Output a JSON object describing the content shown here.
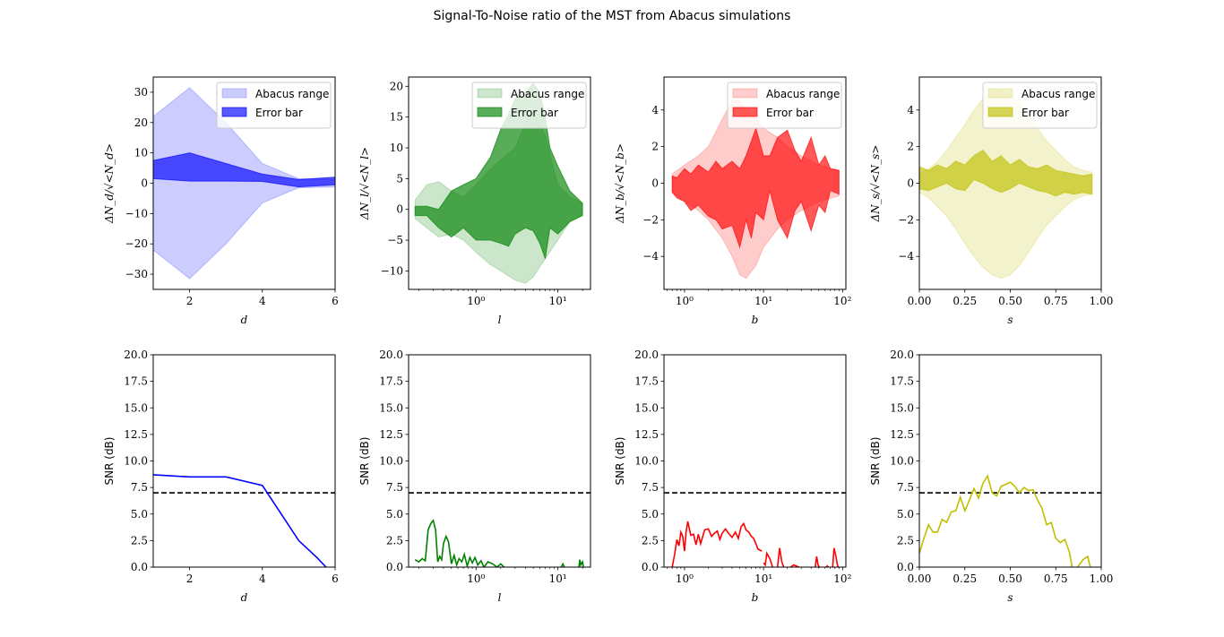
{
  "title": "Signal-To-Noise ratio of the MST from Abacus simulations",
  "chart_data": [
    {
      "id": "d-top",
      "type": "area",
      "xscale": "linear",
      "xlim": [
        1,
        6
      ],
      "ylim": [
        -35,
        35
      ],
      "xticks": [
        2,
        4,
        6
      ],
      "xtick_labels": [
        "2",
        "4",
        "6"
      ],
      "yticks": [
        -30,
        -20,
        -10,
        0,
        10,
        20,
        30
      ],
      "ytick_labels": [
        "−30",
        "−20",
        "−10",
        "0",
        "10",
        "20",
        "30"
      ],
      "xlabel": "d",
      "ylabel": "ΔN_d/√<N_d>",
      "legend": "top-right",
      "color": "#0000ff",
      "series": [
        {
          "name": "Abacus range",
          "x": [
            1,
            2,
            3,
            4,
            5,
            6
          ],
          "upper": [
            22,
            31.5,
            20,
            6.5,
            1.5,
            1.2
          ],
          "lower": [
            -22,
            -31.5,
            -20,
            -6.5,
            -1.5,
            -1.2
          ]
        },
        {
          "name": "Error bar",
          "x": [
            1,
            2,
            3,
            4,
            5,
            6
          ],
          "upper": [
            7.5,
            10,
            6.5,
            3,
            1.2,
            2
          ],
          "lower": [
            1.5,
            0.7,
            0.7,
            0.6,
            -1.2,
            -0.5
          ]
        }
      ]
    },
    {
      "id": "l-top",
      "type": "area",
      "xscale": "log",
      "xlim": [
        0.15,
        25
      ],
      "ylim": [
        -13,
        21.5
      ],
      "xticks": [
        1,
        10
      ],
      "xtick_labels": [
        "10⁰",
        "10¹"
      ],
      "yticks": [
        -10,
        -5,
        0,
        5,
        10,
        15,
        20
      ],
      "ytick_labels": [
        "−10",
        "−5",
        "0",
        "5",
        "10",
        "15",
        "20"
      ],
      "xlabel": "l",
      "ylabel": "ΔN_l/√<N_l>",
      "legend": "top-right",
      "color": "#008000",
      "series": [
        {
          "name": "Abacus range",
          "x": [
            0.18,
            0.25,
            0.35,
            0.5,
            0.7,
            1,
            1.5,
            2,
            3,
            4,
            5,
            7,
            10,
            14,
            20
          ],
          "upper": [
            1.5,
            4,
            4.5,
            3,
            2,
            4,
            6.5,
            8,
            10,
            14,
            16,
            12,
            4,
            2,
            1
          ],
          "lower": [
            -1.5,
            -3,
            -4.5,
            -4,
            -5,
            -7,
            -9,
            -10,
            -11.5,
            -12,
            -11,
            -8,
            -5,
            -2,
            -1
          ]
        },
        {
          "name": "Error bar",
          "x": [
            0.18,
            0.25,
            0.35,
            0.5,
            0.7,
            1,
            1.5,
            2,
            2.5,
            3,
            4,
            5,
            6,
            7,
            8,
            10,
            14,
            20
          ],
          "upper": [
            0.5,
            0.5,
            0,
            3,
            4,
            5,
            8.5,
            13,
            15.5,
            18,
            19,
            20.5,
            19,
            15,
            10,
            7,
            3,
            1
          ],
          "lower": [
            -1,
            -1,
            -3,
            -4.5,
            -3,
            -5,
            -5,
            -5.5,
            -6,
            -4,
            -3,
            -3.5,
            -5.5,
            -8,
            -3,
            -4,
            -2,
            -1
          ]
        }
      ]
    },
    {
      "id": "b-top",
      "type": "area",
      "xscale": "log",
      "xlim": [
        0.55,
        110
      ],
      "ylim": [
        -5.8,
        5.8
      ],
      "xticks": [
        1,
        10,
        100
      ],
      "xtick_labels": [
        "10⁰",
        "10¹",
        "10²"
      ],
      "yticks": [
        -4,
        -2,
        0,
        2,
        4
      ],
      "ytick_labels": [
        "−4",
        "−2",
        "0",
        "2",
        "4"
      ],
      "xlabel": "b",
      "ylabel": "ΔN_b/√<N_b>",
      "legend": "top-right",
      "color": "#ff0000",
      "series": [
        {
          "name": "Abacus range",
          "x": [
            0.7,
            1,
            1.5,
            2,
            3,
            4,
            5,
            6,
            8,
            10,
            15,
            20,
            30,
            50,
            90
          ],
          "upper": [
            0.5,
            1,
            1.5,
            2,
            3.5,
            4.5,
            4.5,
            4,
            3.5,
            3,
            2.5,
            2,
            1.5,
            1,
            0.7
          ],
          "lower": [
            -0.5,
            -1,
            -1.5,
            -2,
            -3,
            -4,
            -5,
            -5.2,
            -4.5,
            -3.5,
            -2.5,
            -2,
            -1.5,
            -1,
            -0.7
          ]
        },
        {
          "name": "Error bar",
          "x": [
            0.7,
            0.8,
            1,
            1.2,
            1.5,
            2,
            2.5,
            3,
            4,
            5,
            6,
            7,
            8,
            10,
            12,
            15,
            20,
            25,
            30,
            40,
            50,
            60,
            70,
            90
          ],
          "upper": [
            0.4,
            0.3,
            0.8,
            0.5,
            1,
            0.6,
            1.2,
            0.8,
            1.2,
            0.8,
            1.5,
            2.3,
            3,
            1.5,
            1.5,
            2.5,
            2.9,
            1.8,
            1.2,
            2.5,
            1,
            1.5,
            0.8,
            0.7
          ],
          "lower": [
            -0.5,
            -0.8,
            -1,
            -1.5,
            -1.2,
            -1.8,
            -2,
            -2.5,
            -2.3,
            -3.5,
            -2,
            -3,
            -1.6,
            -2,
            -0.4,
            -2,
            -3,
            -1.5,
            -1,
            -2.6,
            -1.2,
            -1.6,
            -0.4,
            -0.6
          ]
        }
      ]
    },
    {
      "id": "s-top",
      "type": "area",
      "xscale": "linear",
      "xlim": [
        0,
        1
      ],
      "ylim": [
        -5.8,
        5.8
      ],
      "xticks": [
        0,
        0.25,
        0.5,
        0.75,
        1
      ],
      "xtick_labels": [
        "0.00",
        "0.25",
        "0.50",
        "0.75",
        "1.00"
      ],
      "yticks": [
        -4,
        -2,
        0,
        2,
        4
      ],
      "ytick_labels": [
        "−4",
        "−2",
        "0",
        "2",
        "4"
      ],
      "xlabel": "s",
      "ylabel": "ΔN_s/√<N_s>",
      "legend": "top-right",
      "color": "#bfbf00",
      "series": [
        {
          "name": "Abacus range",
          "x": [
            0,
            0.05,
            0.1,
            0.15,
            0.2,
            0.25,
            0.3,
            0.35,
            0.4,
            0.45,
            0.5,
            0.55,
            0.6,
            0.65,
            0.7,
            0.75,
            0.8,
            0.85,
            0.9,
            0.95
          ],
          "upper": [
            0.5,
            0.8,
            1.2,
            1.8,
            2.5,
            3.2,
            4,
            4.6,
            5,
            5.1,
            4.9,
            4.4,
            3.8,
            3,
            2.3,
            1.8,
            1.3,
            0.9,
            0.7,
            0.6
          ],
          "lower": [
            -0.5,
            -0.8,
            -1.3,
            -1.8,
            -2.5,
            -3.3,
            -4,
            -4.6,
            -5,
            -5.2,
            -5,
            -4.5,
            -3.8,
            -3,
            -2.3,
            -1.8,
            -1.3,
            -0.9,
            -0.7,
            -0.6
          ]
        },
        {
          "name": "Error bar",
          "x": [
            0,
            0.05,
            0.1,
            0.15,
            0.2,
            0.25,
            0.3,
            0.35,
            0.4,
            0.45,
            0.5,
            0.55,
            0.6,
            0.65,
            0.7,
            0.75,
            0.8,
            0.85,
            0.9,
            0.95
          ],
          "upper": [
            0.9,
            0.7,
            1,
            0.8,
            1.2,
            1,
            1.5,
            1.8,
            1.2,
            1.5,
            1,
            1.3,
            0.9,
            0.8,
            1,
            0.7,
            0.6,
            0.5,
            0.4,
            0.5
          ],
          "lower": [
            -0.3,
            -0.4,
            -0.2,
            0,
            -0.3,
            -0.4,
            0.2,
            0,
            -0.3,
            -0.5,
            -0.3,
            0,
            -0.2,
            -0.4,
            -0.5,
            -0.7,
            -0.5,
            -0.6,
            -0.5,
            -0.6
          ]
        }
      ]
    },
    {
      "id": "d-snr",
      "type": "line",
      "xscale": "linear",
      "xlim": [
        1,
        6
      ],
      "ylim": [
        0,
        20
      ],
      "xticks": [
        2,
        4,
        6
      ],
      "xtick_labels": [
        "2",
        "4",
        "6"
      ],
      "yticks": [
        0,
        2.5,
        5,
        7.5,
        10,
        12.5,
        15,
        17.5,
        20
      ],
      "ytick_labels": [
        "0.0",
        "2.5",
        "5.0",
        "7.5",
        "10.0",
        "12.5",
        "15.0",
        "17.5",
        "20.0"
      ],
      "xlabel": "d",
      "ylabel": "SNR (dB)",
      "threshold": 7,
      "color": "#0000ff",
      "series": [
        {
          "x": [
            1,
            2,
            3,
            4,
            4.5,
            5,
            5.5,
            5.75
          ],
          "y": [
            8.7,
            8.5,
            8.5,
            7.7,
            5.1,
            2.5,
            0.9,
            0
          ]
        }
      ]
    },
    {
      "id": "l-snr",
      "type": "line",
      "xscale": "log",
      "xlim": [
        0.15,
        25
      ],
      "ylim": [
        0,
        20
      ],
      "xticks": [
        1,
        10
      ],
      "xtick_labels": [
        "10⁰",
        "10¹"
      ],
      "yticks": [
        0,
        2.5,
        5,
        7.5,
        10,
        12.5,
        15,
        17.5,
        20
      ],
      "ytick_labels": [
        "0.0",
        "2.5",
        "5.0",
        "7.5",
        "10.0",
        "12.5",
        "15.0",
        "17.5",
        "20.0"
      ],
      "xlabel": "l",
      "ylabel": "SNR (dB)",
      "threshold": 7,
      "color": "#008000",
      "series": [
        {
          "x": [
            0.18,
            0.2,
            0.22,
            0.24,
            0.26,
            0.28,
            0.3,
            0.32,
            0.34,
            0.36,
            0.38,
            0.4,
            0.43,
            0.46,
            0.5,
            0.54,
            0.58,
            0.62,
            0.67,
            0.72,
            0.78,
            0.84,
            0.9,
            0.97,
            1.05,
            1.15,
            1.25,
            1.4,
            1.6,
            1.8,
            2,
            2.2
          ],
          "y": [
            0.7,
            0.5,
            0.8,
            0.6,
            3.5,
            4.1,
            4.4,
            3.5,
            0.5,
            1,
            0.7,
            2.2,
            2.9,
            2.4,
            0.3,
            1.1,
            0.2,
            0.8,
            0.5,
            1.2,
            0.1,
            0.9,
            0.4,
            0.9,
            0.2,
            0.6,
            0,
            0.5,
            0.3,
            0,
            0.3,
            0
          ]
        },
        {
          "x": [
            11,
            11.5,
            12
          ],
          "y": [
            0,
            0.3,
            0
          ]
        },
        {
          "x": [
            18,
            18.5,
            19,
            20,
            20.5
          ],
          "y": [
            0,
            0.7,
            0.2,
            0.5,
            0
          ]
        }
      ]
    },
    {
      "id": "b-snr",
      "type": "line",
      "xscale": "log",
      "xlim": [
        0.55,
        110
      ],
      "ylim": [
        0,
        20
      ],
      "xticks": [
        1,
        10,
        100
      ],
      "xtick_labels": [
        "10⁰",
        "10¹",
        "10²"
      ],
      "yticks": [
        0,
        2.5,
        5,
        7.5,
        10,
        12.5,
        15,
        17.5,
        20
      ],
      "ytick_labels": [
        "0.0",
        "2.5",
        "5.0",
        "7.5",
        "10.0",
        "12.5",
        "15.0",
        "17.5",
        "20.0"
      ],
      "xlabel": "b",
      "ylabel": "SNR (dB)",
      "threshold": 7,
      "color": "#ff0000",
      "series": [
        {
          "x": [
            0.7,
            0.75,
            0.8,
            0.85,
            0.9,
            0.95,
            1,
            1.05,
            1.1,
            1.2,
            1.3,
            1.4,
            1.5,
            1.6,
            1.8,
            2,
            2.2,
            2.4,
            2.6,
            2.8,
            3,
            3.3,
            3.6,
            4,
            4.4,
            4.8,
            5.2,
            5.6,
            6,
            6.5,
            7,
            7.5,
            8,
            8.5,
            9,
            9.5
          ],
          "y": [
            0,
            1.2,
            2.6,
            2,
            3.3,
            2.9,
            1.5,
            3.4,
            4.3,
            3,
            3.1,
            2.1,
            3.1,
            2.2,
            3.5,
            3.6,
            2.9,
            3.2,
            3.4,
            2.6,
            3.2,
            3.6,
            3.2,
            2.8,
            3.3,
            2.7,
            3.8,
            4.1,
            3.5,
            3.3,
            2.9,
            2.7,
            2.2,
            1.7,
            1.6,
            1.5
          ]
        },
        {
          "x": [
            10,
            10.5,
            11,
            12,
            13
          ],
          "y": [
            0.4,
            0.2,
            1.3,
            0.8,
            0
          ]
        },
        {
          "x": [
            15,
            16,
            17,
            18
          ],
          "y": [
            0,
            1.8,
            0.5,
            0
          ]
        },
        {
          "x": [
            22,
            24,
            26,
            28
          ],
          "y": [
            0,
            0.2,
            0.1,
            0
          ]
        },
        {
          "x": [
            45,
            47,
            49,
            51
          ],
          "y": [
            0,
            1,
            0.2,
            0
          ]
        },
        {
          "x": [
            62,
            64,
            66
          ],
          "y": [
            0,
            0.1,
            0
          ]
        },
        {
          "x": [
            75,
            78,
            82,
            86,
            88
          ],
          "y": [
            0,
            1.8,
            1.1,
            0.2,
            0
          ]
        }
      ]
    },
    {
      "id": "s-snr",
      "type": "line",
      "xscale": "linear",
      "xlim": [
        0,
        1
      ],
      "ylim": [
        0,
        20
      ],
      "xticks": [
        0,
        0.25,
        0.5,
        0.75,
        1
      ],
      "xtick_labels": [
        "0.00",
        "0.25",
        "0.50",
        "0.75",
        "1.00"
      ],
      "yticks": [
        0,
        2.5,
        5,
        7.5,
        10,
        12.5,
        15,
        17.5,
        20
      ],
      "ytick_labels": [
        "0.0",
        "2.5",
        "5.0",
        "7.5",
        "10.0",
        "12.5",
        "15.0",
        "17.5",
        "20.0"
      ],
      "xlabel": "s",
      "ylabel": "SNR (dB)",
      "threshold": 7,
      "color": "#bfbf00",
      "series": [
        {
          "x": [
            0,
            0.025,
            0.05,
            0.075,
            0.1,
            0.125,
            0.15,
            0.175,
            0.2,
            0.225,
            0.25,
            0.275,
            0.3,
            0.325,
            0.35,
            0.375,
            0.4,
            0.425,
            0.45,
            0.475,
            0.5,
            0.525,
            0.55,
            0.575,
            0.6,
            0.625,
            0.65,
            0.675,
            0.7,
            0.725,
            0.75,
            0.775,
            0.8,
            0.825,
            0.84
          ],
          "y": [
            1.3,
            2.7,
            4,
            3.3,
            3.3,
            4.5,
            4.2,
            5.2,
            5.3,
            6.6,
            5.3,
            6.3,
            7.4,
            6.5,
            7.9,
            8.6,
            7,
            6.7,
            7.6,
            7.8,
            8,
            7.6,
            7,
            7.5,
            7.2,
            7.3,
            6.3,
            5.5,
            4,
            4.2,
            2.7,
            2.3,
            2.6,
            1.4,
            0
          ]
        },
        {
          "x": [
            0.87,
            0.9,
            0.925,
            0.94
          ],
          "y": [
            0,
            0.7,
            1,
            0
          ]
        }
      ]
    }
  ]
}
